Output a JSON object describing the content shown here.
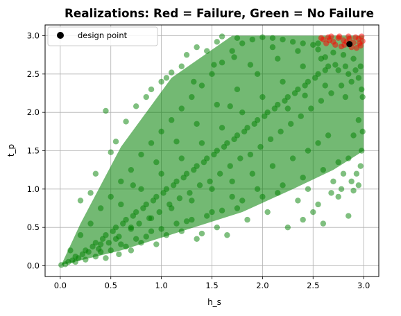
{
  "chart_data": {
    "type": "scatter",
    "title": "Realizations: Red = Failure, Green = No Failure",
    "xlabel": "h_s",
    "ylabel": "t_p",
    "xlim": [
      -0.15,
      3.15
    ],
    "ylim": [
      -0.14,
      3.14
    ],
    "x_ticks": [
      "0.0",
      "0.5",
      "1.0",
      "1.5",
      "2.0",
      "2.5",
      "3.0"
    ],
    "y_ticks": [
      "0.0",
      "0.5",
      "1.0",
      "1.5",
      "2.0",
      "2.5",
      "3.0"
    ],
    "grid": true,
    "legend_position": "top-left",
    "legend": [
      {
        "label": "design point",
        "color": "#000000",
        "marker": "circle"
      }
    ],
    "colors": {
      "no_failure": "#008000",
      "failure": "#ff0000",
      "design_point": "#000000"
    },
    "series": [
      {
        "name": "No Failure",
        "color": "#008000",
        "points": [
          [
            0.01,
            0.01
          ],
          [
            0.05,
            0.02
          ],
          [
            0.08,
            0.05
          ],
          [
            0.12,
            0.07
          ],
          [
            0.15,
            0.12
          ],
          [
            0.18,
            0.1
          ],
          [
            0.22,
            0.15
          ],
          [
            0.25,
            0.2
          ],
          [
            0.28,
            0.18
          ],
          [
            0.32,
            0.25
          ],
          [
            0.35,
            0.3
          ],
          [
            0.38,
            0.22
          ],
          [
            0.42,
            0.35
          ],
          [
            0.45,
            0.4
          ],
          [
            0.48,
            0.3
          ],
          [
            0.52,
            0.45
          ],
          [
            0.55,
            0.5
          ],
          [
            0.58,
            0.38
          ],
          [
            0.62,
            0.55
          ],
          [
            0.65,
            0.6
          ],
          [
            0.7,
            0.5
          ],
          [
            0.72,
            0.65
          ],
          [
            0.75,
            0.7
          ],
          [
            0.78,
            0.55
          ],
          [
            0.82,
            0.75
          ],
          [
            0.85,
            0.8
          ],
          [
            0.88,
            0.62
          ],
          [
            0.92,
            0.85
          ],
          [
            0.95,
            0.9
          ],
          [
            0.98,
            0.7
          ],
          [
            1.02,
            0.95
          ],
          [
            1.05,
            1.0
          ],
          [
            1.08,
            0.8
          ],
          [
            1.12,
            1.05
          ],
          [
            1.15,
            1.1
          ],
          [
            1.18,
            0.88
          ],
          [
            1.22,
            1.15
          ],
          [
            1.25,
            1.2
          ],
          [
            1.28,
            0.95
          ],
          [
            1.32,
            1.25
          ],
          [
            1.35,
            1.3
          ],
          [
            1.38,
            1.05
          ],
          [
            1.42,
            1.35
          ],
          [
            1.45,
            1.4
          ],
          [
            1.48,
            1.1
          ],
          [
            1.52,
            1.45
          ],
          [
            1.55,
            1.5
          ],
          [
            1.58,
            1.2
          ],
          [
            1.62,
            1.55
          ],
          [
            1.65,
            1.6
          ],
          [
            1.68,
            1.3
          ],
          [
            1.72,
            1.65
          ],
          [
            1.75,
            1.7
          ],
          [
            1.78,
            1.4
          ],
          [
            1.82,
            1.75
          ],
          [
            1.85,
            1.8
          ],
          [
            1.88,
            1.45
          ],
          [
            1.92,
            1.85
          ],
          [
            1.95,
            1.9
          ],
          [
            1.98,
            1.55
          ],
          [
            2.02,
            1.95
          ],
          [
            2.05,
            2.0
          ],
          [
            2.08,
            1.65
          ],
          [
            2.12,
            2.05
          ],
          [
            2.15,
            2.1
          ],
          [
            2.18,
            1.75
          ],
          [
            2.22,
            2.15
          ],
          [
            2.25,
            2.2
          ],
          [
            2.28,
            1.85
          ],
          [
            2.32,
            2.25
          ],
          [
            2.35,
            2.3
          ],
          [
            2.38,
            1.95
          ],
          [
            2.42,
            2.35
          ],
          [
            2.45,
            2.4
          ],
          [
            2.48,
            2.05
          ],
          [
            2.52,
            2.45
          ],
          [
            2.55,
            2.5
          ],
          [
            2.58,
            2.15
          ],
          [
            2.62,
            2.55
          ],
          [
            2.65,
            2.6
          ],
          [
            2.68,
            2.25
          ],
          [
            2.72,
            2.62
          ],
          [
            2.75,
            2.55
          ],
          [
            2.78,
            2.35
          ],
          [
            2.82,
            2.6
          ],
          [
            2.85,
            2.5
          ],
          [
            2.88,
            2.4
          ],
          [
            2.92,
            2.55
          ],
          [
            2.95,
            2.45
          ],
          [
            2.98,
            2.3
          ],
          [
            0.45,
            2.02
          ],
          [
            1.75,
            2.97
          ],
          [
            0.75,
            2.08
          ],
          [
            0.65,
            1.88
          ],
          [
            0.5,
            1.48
          ],
          [
            0.35,
            1.2
          ],
          [
            0.3,
            0.95
          ],
          [
            0.2,
            0.85
          ],
          [
            0.55,
            1.62
          ],
          [
            1.05,
            2.45
          ],
          [
            1.2,
            2.6
          ],
          [
            1.25,
            2.75
          ],
          [
            1.35,
            2.85
          ],
          [
            1.55,
            2.92
          ],
          [
            1.6,
            2.99
          ],
          [
            1.1,
            2.52
          ],
          [
            0.9,
            2.3
          ],
          [
            0.85,
            2.2
          ],
          [
            1.0,
            2.4
          ],
          [
            1.45,
            2.8
          ],
          [
            2.85,
            0.65
          ],
          [
            2.75,
            0.9
          ],
          [
            2.9,
            0.98
          ],
          [
            2.95,
            1.05
          ],
          [
            2.6,
            0.55
          ],
          [
            2.4,
            0.6
          ],
          [
            2.25,
            0.5
          ],
          [
            2.05,
            0.7
          ],
          [
            1.75,
            0.75
          ],
          [
            1.65,
            0.4
          ],
          [
            1.55,
            0.5
          ],
          [
            1.4,
            0.42
          ],
          [
            1.35,
            0.35
          ],
          [
            1.2,
            0.45
          ],
          [
            1.05,
            0.4
          ],
          [
            0.95,
            0.28
          ],
          [
            0.8,
            0.3
          ],
          [
            0.7,
            0.2
          ],
          [
            0.58,
            0.15
          ],
          [
            0.45,
            0.1
          ],
          [
            2.98,
            1.5
          ],
          [
            2.95,
            1.9
          ],
          [
            2.9,
            1.7
          ],
          [
            2.85,
            1.4
          ],
          [
            2.8,
            1.2
          ],
          [
            2.7,
            1.1
          ],
          [
            2.55,
            0.8
          ],
          [
            2.45,
            1.0
          ],
          [
            2.35,
            0.85
          ],
          [
            2.15,
            0.95
          ],
          [
            1.95,
            1.0
          ],
          [
            1.85,
            0.6
          ],
          [
            1.7,
            0.9
          ],
          [
            1.5,
            0.7
          ],
          [
            1.3,
            0.6
          ],
          [
            1.15,
            0.55
          ],
          [
            0.9,
            0.45
          ],
          [
            0.75,
            0.35
          ],
          [
            0.6,
            0.28
          ],
          [
            0.4,
            0.18
          ],
          [
            0.1,
            0.2
          ],
          [
            0.2,
            0.4
          ],
          [
            0.3,
            0.55
          ],
          [
            0.4,
            0.75
          ],
          [
            0.5,
            0.9
          ],
          [
            0.6,
            1.1
          ],
          [
            0.7,
            1.25
          ],
          [
            0.8,
            1.45
          ],
          [
            0.9,
            1.6
          ],
          [
            1.0,
            1.75
          ],
          [
            1.1,
            1.9
          ],
          [
            1.2,
            2.05
          ],
          [
            1.3,
            2.2
          ],
          [
            1.4,
            2.35
          ],
          [
            1.5,
            2.5
          ],
          [
            1.6,
            2.65
          ],
          [
            1.7,
            2.8
          ],
          [
            1.8,
            2.9
          ],
          [
            1.9,
            2.95
          ],
          [
            2.0,
            2.98
          ],
          [
            2.1,
            2.97
          ],
          [
            2.2,
            2.95
          ],
          [
            2.3,
            2.92
          ],
          [
            2.4,
            2.9
          ],
          [
            2.5,
            2.88
          ],
          [
            2.55,
            2.82
          ],
          [
            2.58,
            2.7
          ],
          [
            2.62,
            2.72
          ],
          [
            2.7,
            2.78
          ],
          [
            2.8,
            2.75
          ],
          [
            2.9,
            2.7
          ],
          [
            2.97,
            2.6
          ],
          [
            2.99,
            2.2
          ],
          [
            2.99,
            1.75
          ],
          [
            2.97,
            1.3
          ],
          [
            2.93,
            1.2
          ],
          [
            2.88,
            1.1
          ],
          [
            2.78,
            1.0
          ],
          [
            2.68,
            0.95
          ],
          [
            2.5,
            0.7
          ],
          [
            0.15,
            0.05
          ],
          [
            0.25,
            0.08
          ],
          [
            0.35,
            0.12
          ],
          [
            0.5,
            0.2
          ],
          [
            0.65,
            0.25
          ],
          [
            0.85,
            0.38
          ],
          [
            1.0,
            0.48
          ],
          [
            1.25,
            0.58
          ],
          [
            1.45,
            0.65
          ],
          [
            1.6,
            0.72
          ],
          [
            1.8,
            0.85
          ],
          [
            2.0,
            0.9
          ],
          [
            2.2,
            1.05
          ],
          [
            2.4,
            1.15
          ],
          [
            2.6,
            1.25
          ],
          [
            2.75,
            1.35
          ],
          [
            2.65,
            1.7
          ],
          [
            2.55,
            1.6
          ],
          [
            2.45,
            1.5
          ],
          [
            2.3,
            1.4
          ],
          [
            2.1,
            1.3
          ],
          [
            1.9,
            1.2
          ],
          [
            1.7,
            1.1
          ],
          [
            1.5,
            1.0
          ],
          [
            1.3,
            0.85
          ],
          [
            1.1,
            0.75
          ],
          [
            0.9,
            0.62
          ],
          [
            0.7,
            0.48
          ],
          [
            0.55,
            0.35
          ],
          [
            0.4,
            0.28
          ],
          [
            0.6,
            0.8
          ],
          [
            0.8,
            1.0
          ],
          [
            1.0,
            1.2
          ],
          [
            1.2,
            1.4
          ],
          [
            1.4,
            1.6
          ],
          [
            1.6,
            1.8
          ],
          [
            1.8,
            2.0
          ],
          [
            2.0,
            2.2
          ],
          [
            2.2,
            2.4
          ],
          [
            2.4,
            2.6
          ],
          [
            0.72,
            1.05
          ],
          [
            0.95,
            1.35
          ],
          [
            1.15,
            1.62
          ],
          [
            1.35,
            1.85
          ],
          [
            1.55,
            2.1
          ],
          [
            1.75,
            2.3
          ],
          [
            1.95,
            2.5
          ],
          [
            2.15,
            2.7
          ],
          [
            2.35,
            2.8
          ],
          [
            2.55,
            2.9
          ],
          [
            1.68,
            2.08
          ],
          [
            1.88,
            2.62
          ],
          [
            2.1,
            2.85
          ],
          [
            1.32,
            2.4
          ],
          [
            1.52,
            2.62
          ],
          [
            1.72,
            2.72
          ],
          [
            2.25,
            2.05
          ],
          [
            2.42,
            2.22
          ],
          [
            2.62,
            2.35
          ],
          [
            2.82,
            2.2
          ]
        ]
      },
      {
        "name": "Failure",
        "color": "#ff0000",
        "points": [
          [
            2.6,
            2.95
          ],
          [
            2.65,
            2.98
          ],
          [
            2.7,
            2.92
          ],
          [
            2.75,
            2.97
          ],
          [
            2.8,
            2.94
          ],
          [
            2.85,
            2.99
          ],
          [
            2.9,
            2.91
          ],
          [
            2.95,
            2.96
          ],
          [
            2.99,
            2.93
          ],
          [
            2.63,
            2.9
          ],
          [
            2.72,
            2.88
          ],
          [
            2.78,
            2.86
          ],
          [
            2.88,
            2.85
          ],
          [
            2.93,
            2.84
          ],
          [
            2.97,
            2.87
          ],
          [
            2.68,
            2.99
          ],
          [
            2.83,
            2.92
          ],
          [
            2.98,
            2.99
          ],
          [
            2.76,
            2.99
          ],
          [
            2.92,
            2.98
          ],
          [
            2.58,
            2.97
          ],
          [
            2.66,
            2.94
          ],
          [
            2.86,
            2.96
          ],
          [
            2.96,
            2.9
          ],
          [
            2.81,
            2.88
          ]
        ]
      },
      {
        "name": "design point",
        "color": "#000000",
        "points": [
          [
            2.86,
            2.89
          ]
        ]
      }
    ]
  }
}
